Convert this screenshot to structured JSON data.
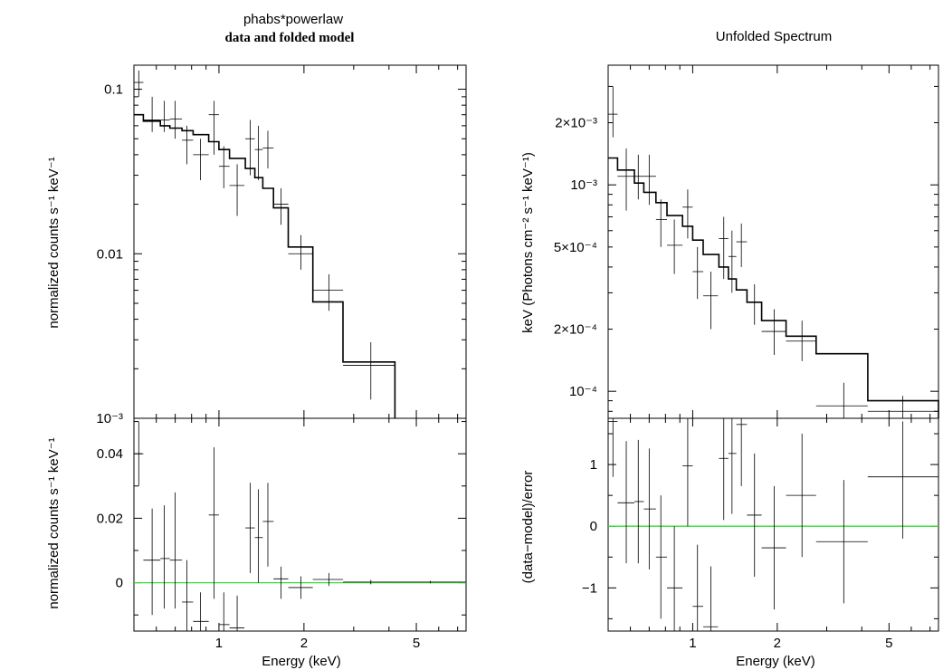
{
  "chart_data": [
    {
      "type": "scatter",
      "title": "phabs*powerlaw",
      "subtitle": "data and folded model",
      "xlabel": "",
      "ylabel": "normalized counts s⁻¹ keV⁻¹",
      "xscale": "log",
      "yscale": "log",
      "xlim": [
        0.5,
        7.5
      ],
      "ylim": [
        0.001,
        0.14
      ],
      "x_ticks": [],
      "y_ticks": [
        {
          "value": 0.1,
          "label": "0.1"
        },
        {
          "value": 0.01,
          "label": "0.01"
        },
        {
          "value": 0.001,
          "label": "10⁻³"
        }
      ],
      "data": [
        {
          "x": 0.52,
          "xlo": 0.5,
          "xhi": 0.54,
          "y": 0.11,
          "ylo": 0.09,
          "yhi": 0.13
        },
        {
          "x": 0.58,
          "xlo": 0.54,
          "xhi": 0.62,
          "y": 0.065,
          "ylo": 0.055,
          "yhi": 0.09
        },
        {
          "x": 0.64,
          "xlo": 0.62,
          "xhi": 0.67,
          "y": 0.065,
          "ylo": 0.055,
          "yhi": 0.085
        },
        {
          "x": 0.7,
          "xlo": 0.67,
          "xhi": 0.74,
          "y": 0.066,
          "ylo": 0.05,
          "yhi": 0.085
        },
        {
          "x": 0.77,
          "xlo": 0.74,
          "xhi": 0.81,
          "y": 0.049,
          "ylo": 0.035,
          "yhi": 0.06
        },
        {
          "x": 0.86,
          "xlo": 0.81,
          "xhi": 0.92,
          "y": 0.04,
          "ylo": 0.028,
          "yhi": 0.05
        },
        {
          "x": 0.96,
          "xlo": 0.92,
          "xhi": 1.0,
          "y": 0.07,
          "ylo": 0.04,
          "yhi": 0.085
        },
        {
          "x": 1.04,
          "xlo": 1.0,
          "xhi": 1.09,
          "y": 0.034,
          "ylo": 0.025,
          "yhi": 0.045
        },
        {
          "x": 1.16,
          "xlo": 1.09,
          "xhi": 1.23,
          "y": 0.026,
          "ylo": 0.017,
          "yhi": 0.035
        },
        {
          "x": 1.29,
          "xlo": 1.24,
          "xhi": 1.34,
          "y": 0.05,
          "ylo": 0.03,
          "yhi": 0.065
        },
        {
          "x": 1.38,
          "xlo": 1.34,
          "xhi": 1.43,
          "y": 0.043,
          "ylo": 0.028,
          "yhi": 0.06
        },
        {
          "x": 1.49,
          "xlo": 1.43,
          "xhi": 1.56,
          "y": 0.044,
          "ylo": 0.033,
          "yhi": 0.056
        },
        {
          "x": 1.66,
          "xlo": 1.56,
          "xhi": 1.76,
          "y": 0.02,
          "ylo": 0.015,
          "yhi": 0.025
        },
        {
          "x": 1.95,
          "xlo": 1.76,
          "xhi": 2.15,
          "y": 0.01,
          "ylo": 0.008,
          "yhi": 0.013
        },
        {
          "x": 2.45,
          "xlo": 2.15,
          "xhi": 2.75,
          "y": 0.006,
          "ylo": 0.0045,
          "yhi": 0.0075
        },
        {
          "x": 3.45,
          "xlo": 2.75,
          "xhi": 4.2,
          "y": 0.0021,
          "ylo": 0.0013,
          "yhi": 0.0029
        }
      ],
      "model_steps": [
        {
          "xlo": 0.5,
          "xhi": 0.54,
          "y": 0.07
        },
        {
          "xlo": 0.54,
          "xhi": 0.62,
          "y": 0.064
        },
        {
          "xlo": 0.62,
          "xhi": 0.67,
          "y": 0.06
        },
        {
          "xlo": 0.67,
          "xhi": 0.74,
          "y": 0.058
        },
        {
          "xlo": 0.74,
          "xhi": 0.81,
          "y": 0.056
        },
        {
          "xlo": 0.81,
          "xhi": 0.92,
          "y": 0.053
        },
        {
          "xlo": 0.92,
          "xhi": 1.0,
          "y": 0.048
        },
        {
          "xlo": 1.0,
          "xhi": 1.09,
          "y": 0.043
        },
        {
          "xlo": 1.09,
          "xhi": 1.24,
          "y": 0.038
        },
        {
          "xlo": 1.24,
          "xhi": 1.34,
          "y": 0.033
        },
        {
          "xlo": 1.34,
          "xhi": 1.43,
          "y": 0.029
        },
        {
          "xlo": 1.43,
          "xhi": 1.56,
          "y": 0.025
        },
        {
          "xlo": 1.56,
          "xhi": 1.76,
          "y": 0.019
        },
        {
          "xlo": 1.76,
          "xhi": 2.15,
          "y": 0.011
        },
        {
          "xlo": 2.15,
          "xhi": 2.75,
          "y": 0.0051
        },
        {
          "xlo": 2.75,
          "xhi": 4.2,
          "y": 0.0022
        }
      ]
    },
    {
      "type": "scatter",
      "title": "",
      "xlabel": "Energy (keV)",
      "ylabel": "normalized counts s⁻¹ keV⁻¹",
      "xscale": "log",
      "yscale": "linear",
      "xlim": [
        0.5,
        7.5
      ],
      "ylim": [
        -0.015,
        0.051
      ],
      "x_ticks": [
        {
          "value": 1,
          "label": "1"
        },
        {
          "value": 2,
          "label": "2"
        },
        {
          "value": 5,
          "label": "5"
        }
      ],
      "y_ticks": [
        {
          "value": 0,
          "label": "0"
        },
        {
          "value": 0.02,
          "label": "0.02"
        },
        {
          "value": 0.04,
          "label": "0.04"
        }
      ],
      "zero_line_color": "#33dd33",
      "data": [
        {
          "x": 0.52,
          "xlo": 0.5,
          "xhi": 0.54,
          "y": 0.04,
          "ylo": 0.03,
          "yhi": 0.05
        },
        {
          "x": 0.58,
          "xlo": 0.54,
          "xhi": 0.62,
          "y": 0.007,
          "ylo": -0.01,
          "yhi": 0.023
        },
        {
          "x": 0.64,
          "xlo": 0.62,
          "xhi": 0.67,
          "y": 0.0075,
          "ylo": -0.008,
          "yhi": 0.024
        },
        {
          "x": 0.7,
          "xlo": 0.67,
          "xhi": 0.74,
          "y": 0.007,
          "ylo": -0.008,
          "yhi": 0.028
        },
        {
          "x": 0.77,
          "xlo": 0.74,
          "xhi": 0.81,
          "y": -0.006,
          "ylo": -0.015,
          "yhi": 0.007
        },
        {
          "x": 0.86,
          "xlo": 0.81,
          "xhi": 0.92,
          "y": -0.012,
          "ylo": -0.015,
          "yhi": -0.003
        },
        {
          "x": 0.96,
          "xlo": 0.92,
          "xhi": 1.0,
          "y": 0.021,
          "ylo": -0.005,
          "yhi": 0.042
        },
        {
          "x": 1.04,
          "xlo": 1.0,
          "xhi": 1.09,
          "y": -0.013,
          "ylo": -0.015,
          "yhi": -0.003
        },
        {
          "x": 1.16,
          "xlo": 1.09,
          "xhi": 1.23,
          "y": -0.014,
          "ylo": -0.015,
          "yhi": -0.004
        },
        {
          "x": 1.29,
          "xlo": 1.24,
          "xhi": 1.34,
          "y": 0.017,
          "ylo": 0.003,
          "yhi": 0.031
        },
        {
          "x": 1.38,
          "xlo": 1.34,
          "xhi": 1.43,
          "y": 0.014,
          "ylo": 0.0,
          "yhi": 0.029
        },
        {
          "x": 1.49,
          "xlo": 1.43,
          "xhi": 1.56,
          "y": 0.019,
          "ylo": 0.005,
          "yhi": 0.031
        },
        {
          "x": 1.66,
          "xlo": 1.56,
          "xhi": 1.76,
          "y": 0.0012,
          "ylo": -0.005,
          "yhi": 0.005
        },
        {
          "x": 1.95,
          "xlo": 1.76,
          "xhi": 2.15,
          "y": -0.0015,
          "ylo": -0.005,
          "yhi": 0.002
        },
        {
          "x": 2.45,
          "xlo": 2.15,
          "xhi": 2.75,
          "y": 0.001,
          "ylo": -0.001,
          "yhi": 0.003
        },
        {
          "x": 3.45,
          "xlo": 2.75,
          "xhi": 4.2,
          "y": 0.0002,
          "ylo": -0.0005,
          "yhi": 0.0009
        },
        {
          "x": 5.6,
          "xlo": 4.2,
          "xhi": 7.5,
          "y": 0.0002,
          "ylo": -0.0002,
          "yhi": 0.0006
        }
      ]
    },
    {
      "type": "scatter",
      "title": "Unfolded Spectrum",
      "xlabel": "",
      "ylabel": "keV (Photons cm⁻² s⁻¹ keV⁻¹)",
      "xscale": "log",
      "yscale": "log",
      "xlim": [
        0.5,
        7.5
      ],
      "ylim": [
        7.4e-05,
        0.0038
      ],
      "x_ticks": [],
      "y_ticks": [
        {
          "value": 0.0001,
          "label": "10⁻⁴"
        },
        {
          "value": 0.0002,
          "label": "2×10⁻⁴"
        },
        {
          "value": 0.0005,
          "label": "5×10⁻⁴"
        },
        {
          "value": 0.001,
          "label": "10⁻³"
        },
        {
          "value": 0.002,
          "label": "2×10⁻³"
        }
      ],
      "data": [
        {
          "x": 0.52,
          "xlo": 0.5,
          "xhi": 0.54,
          "y": 0.0022,
          "ylo": 0.0017,
          "yhi": 0.003
        },
        {
          "x": 0.58,
          "xlo": 0.54,
          "xhi": 0.62,
          "y": 0.0011,
          "ylo": 0.00075,
          "yhi": 0.0015
        },
        {
          "x": 0.64,
          "xlo": 0.62,
          "xhi": 0.67,
          "y": 0.0011,
          "ylo": 0.00085,
          "yhi": 0.0014
        },
        {
          "x": 0.7,
          "xlo": 0.67,
          "xhi": 0.74,
          "y": 0.0011,
          "ylo": 0.0008,
          "yhi": 0.0014
        },
        {
          "x": 0.77,
          "xlo": 0.74,
          "xhi": 0.81,
          "y": 0.00068,
          "ylo": 0.0005,
          "yhi": 0.00085
        },
        {
          "x": 0.86,
          "xlo": 0.81,
          "xhi": 0.92,
          "y": 0.00051,
          "ylo": 0.00037,
          "yhi": 0.00068
        },
        {
          "x": 0.96,
          "xlo": 0.92,
          "xhi": 1.0,
          "y": 0.00078,
          "ylo": 0.00055,
          "yhi": 0.00095
        },
        {
          "x": 1.04,
          "xlo": 1.0,
          "xhi": 1.09,
          "y": 0.00038,
          "ylo": 0.00028,
          "yhi": 0.0005
        },
        {
          "x": 1.16,
          "xlo": 1.09,
          "xhi": 1.23,
          "y": 0.00029,
          "ylo": 0.0002,
          "yhi": 0.00038
        },
        {
          "x": 1.29,
          "xlo": 1.24,
          "xhi": 1.34,
          "y": 0.00055,
          "ylo": 0.00035,
          "yhi": 0.0007
        },
        {
          "x": 1.38,
          "xlo": 1.34,
          "xhi": 1.43,
          "y": 0.00045,
          "ylo": 0.0003,
          "yhi": 0.0006
        },
        {
          "x": 1.49,
          "xlo": 1.43,
          "xhi": 1.56,
          "y": 0.00053,
          "ylo": 0.0004,
          "yhi": 0.00065
        },
        {
          "x": 1.66,
          "xlo": 1.56,
          "xhi": 1.76,
          "y": 0.00027,
          "ylo": 0.00021,
          "yhi": 0.00033
        },
        {
          "x": 1.95,
          "xlo": 1.76,
          "xhi": 2.15,
          "y": 0.000195,
          "ylo": 0.00015,
          "yhi": 0.00025
        },
        {
          "x": 2.45,
          "xlo": 2.15,
          "xhi": 2.75,
          "y": 0.000175,
          "ylo": 0.00014,
          "yhi": 0.00022
        },
        {
          "x": 3.45,
          "xlo": 2.75,
          "xhi": 4.2,
          "y": 8.5e-05,
          "ylo": 7.4e-05,
          "yhi": 0.00011
        },
        {
          "x": 5.6,
          "xlo": 4.2,
          "xhi": 7.5,
          "y": 8e-05,
          "ylo": 7.4e-05,
          "yhi": 9.5e-05
        }
      ],
      "model_steps": [
        {
          "xlo": 0.5,
          "xhi": 0.54,
          "y": 0.00135
        },
        {
          "xlo": 0.54,
          "xhi": 0.62,
          "y": 0.00118
        },
        {
          "xlo": 0.62,
          "xhi": 0.67,
          "y": 0.00102
        },
        {
          "xlo": 0.67,
          "xhi": 0.74,
          "y": 0.00092
        },
        {
          "xlo": 0.74,
          "xhi": 0.81,
          "y": 0.00082
        },
        {
          "xlo": 0.81,
          "xhi": 0.92,
          "y": 0.00071
        },
        {
          "xlo": 0.92,
          "xhi": 1.0,
          "y": 0.00063
        },
        {
          "xlo": 1.0,
          "xhi": 1.09,
          "y": 0.00054
        },
        {
          "xlo": 1.09,
          "xhi": 1.24,
          "y": 0.00046
        },
        {
          "xlo": 1.24,
          "xhi": 1.34,
          "y": 0.0004
        },
        {
          "xlo": 1.34,
          "xhi": 1.43,
          "y": 0.00035
        },
        {
          "xlo": 1.43,
          "xhi": 1.56,
          "y": 0.00031
        },
        {
          "xlo": 1.56,
          "xhi": 1.76,
          "y": 0.00027
        },
        {
          "xlo": 1.76,
          "xhi": 2.15,
          "y": 0.00022
        },
        {
          "xlo": 2.15,
          "xhi": 2.75,
          "y": 0.000185
        },
        {
          "xlo": 2.75,
          "xhi": 4.2,
          "y": 0.000152
        },
        {
          "xlo": 4.2,
          "xhi": 7.5,
          "y": 9e-05
        }
      ]
    },
    {
      "type": "scatter",
      "title": "",
      "xlabel": "Energy (keV)",
      "ylabel": "(data−model)/error",
      "xscale": "log",
      "yscale": "linear",
      "xlim": [
        0.5,
        7.5
      ],
      "ylim": [
        -1.7,
        1.75
      ],
      "x_ticks": [
        {
          "value": 1,
          "label": "1"
        },
        {
          "value": 2,
          "label": "2"
        },
        {
          "value": 5,
          "label": "5"
        }
      ],
      "y_ticks": [
        {
          "value": -1,
          "label": "−1"
        },
        {
          "value": 0,
          "label": "0"
        },
        {
          "value": 1,
          "label": "1"
        }
      ],
      "zero_line_color": "#33dd33",
      "data": [
        {
          "x": 0.52,
          "xlo": 0.5,
          "xhi": 0.54,
          "y": 1.7,
          "ylo": 0.8,
          "yhi": 1.75
        },
        {
          "x": 0.58,
          "xlo": 0.54,
          "xhi": 0.62,
          "y": 0.38,
          "ylo": -0.6,
          "yhi": 1.38
        },
        {
          "x": 0.64,
          "xlo": 0.62,
          "xhi": 0.67,
          "y": 0.4,
          "ylo": -0.6,
          "yhi": 1.4
        },
        {
          "x": 0.7,
          "xlo": 0.67,
          "xhi": 0.74,
          "y": 0.28,
          "ylo": -0.7,
          "yhi": 1.26
        },
        {
          "x": 0.77,
          "xlo": 0.74,
          "xhi": 0.81,
          "y": -0.5,
          "ylo": -1.5,
          "yhi": 0.5
        },
        {
          "x": 0.86,
          "xlo": 0.81,
          "xhi": 0.92,
          "y": -1.0,
          "ylo": -1.7,
          "yhi": 0.0
        },
        {
          "x": 0.96,
          "xlo": 0.92,
          "xhi": 1.0,
          "y": 0.98,
          "ylo": 0.0,
          "yhi": 1.75
        },
        {
          "x": 1.04,
          "xlo": 1.0,
          "xhi": 1.09,
          "y": -1.3,
          "ylo": -1.7,
          "yhi": -0.3
        },
        {
          "x": 1.16,
          "xlo": 1.09,
          "xhi": 1.23,
          "y": -1.63,
          "ylo": -1.7,
          "yhi": -0.65
        },
        {
          "x": 1.29,
          "xlo": 1.24,
          "xhi": 1.34,
          "y": 1.1,
          "ylo": 0.1,
          "yhi": 1.75
        },
        {
          "x": 1.38,
          "xlo": 1.34,
          "xhi": 1.43,
          "y": 1.18,
          "ylo": 0.2,
          "yhi": 1.75
        },
        {
          "x": 1.49,
          "xlo": 1.43,
          "xhi": 1.56,
          "y": 1.65,
          "ylo": 0.65,
          "yhi": 1.75
        },
        {
          "x": 1.66,
          "xlo": 1.56,
          "xhi": 1.76,
          "y": 0.18,
          "ylo": -0.82,
          "yhi": 1.18
        },
        {
          "x": 1.95,
          "xlo": 1.76,
          "xhi": 2.15,
          "y": -0.35,
          "ylo": -1.35,
          "yhi": 0.65
        },
        {
          "x": 2.45,
          "xlo": 2.15,
          "xhi": 2.75,
          "y": 0.5,
          "ylo": -0.5,
          "yhi": 1.5
        },
        {
          "x": 3.45,
          "xlo": 2.75,
          "xhi": 4.2,
          "y": -0.25,
          "ylo": -1.25,
          "yhi": 0.75
        },
        {
          "x": 5.6,
          "xlo": 4.2,
          "xhi": 7.5,
          "y": 0.8,
          "ylo": -0.2,
          "yhi": 1.7
        }
      ]
    }
  ]
}
